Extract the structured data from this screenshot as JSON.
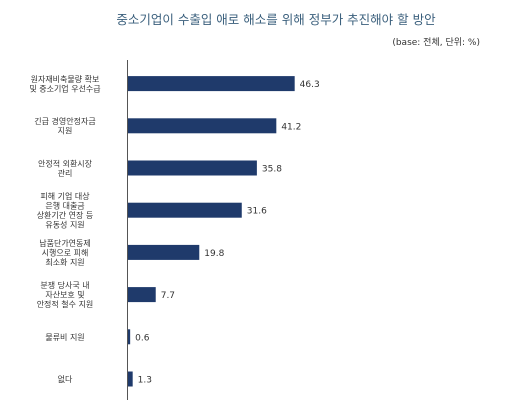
{
  "chart_data": {
    "type": "bar",
    "orientation": "horizontal",
    "title": "중소기업이 수출입 애로 해소를 위해 정부가 추진해야 할 방안",
    "unit_note": "(base: 전체, 단위: %)",
    "categories": [
      [
        "원자재비축물량 확보",
        "및 중소기업 우선수급"
      ],
      [
        "긴급 경영안정자금",
        "지원"
      ],
      [
        "안정적 외환시장",
        "관리"
      ],
      [
        "피해 기업 대상",
        "은행 대출금",
        "상환기간 연장 등",
        "유동성 지원"
      ],
      [
        "납품단가연동제",
        "시행으로 피해",
        "최소화 지원"
      ],
      [
        "분쟁 당사국 내",
        "자산보호 및",
        "안정적 철수 지원"
      ],
      [
        "물류비 지원"
      ],
      [
        "없다"
      ]
    ],
    "values": [
      46.3,
      41.2,
      35.8,
      31.6,
      19.8,
      7.7,
      0.6,
      1.3
    ],
    "bar_color": "#1f3a6b",
    "xlim": [
      0,
      60
    ]
  }
}
